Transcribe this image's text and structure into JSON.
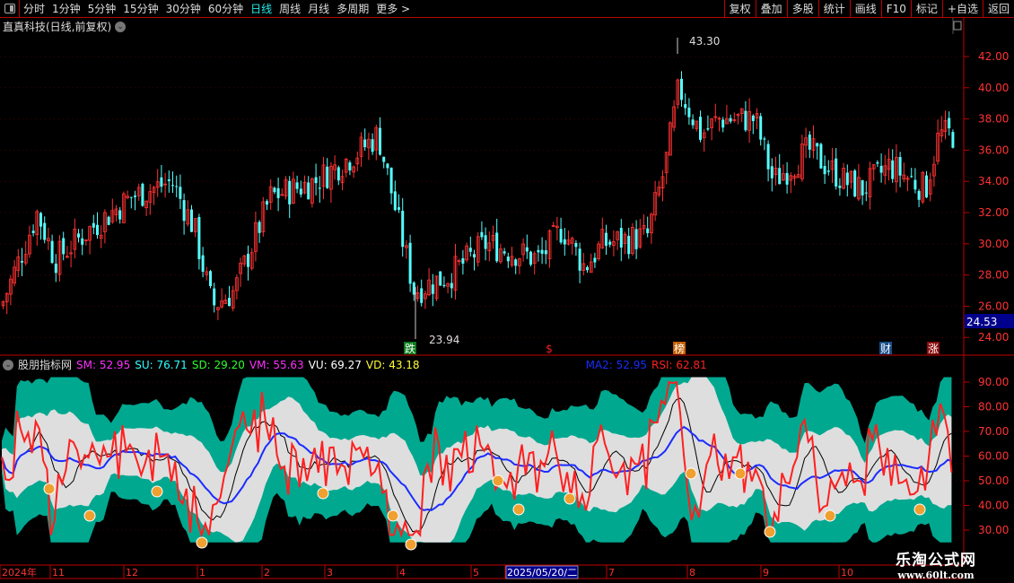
{
  "toolbar": {
    "periods": [
      "分时",
      "1分钟",
      "5分钟",
      "15分钟",
      "30分钟",
      "60分钟",
      "日线",
      "周线",
      "月线",
      "多周期",
      "更多 >"
    ],
    "active": "日线",
    "right_buttons": [
      "复权",
      "叠加",
      "多股",
      "统计",
      "画线",
      "F10",
      "标记",
      "+自选",
      "返回"
    ]
  },
  "stock": {
    "title": "直真科技(日线,前复权)"
  },
  "main_chart": {
    "y_ticks": [
      "42.00",
      "40.00",
      "38.00",
      "36.00",
      "34.00",
      "32.00",
      "30.00",
      "28.00",
      "26.00",
      "24.00"
    ],
    "high_label": "43.30",
    "low_label": "23.94",
    "current_price": "24.53",
    "markers": [
      {
        "text": "跌",
        "color": "#0a7a1a"
      },
      {
        "text": "$",
        "color": "#e22"
      },
      {
        "text": "榜",
        "color": "#c56000"
      },
      {
        "text": "财",
        "color": "#1a4f8a"
      },
      {
        "text": "涨",
        "color": "#8a0a0a"
      }
    ],
    "colors": {
      "up": "#ff3232",
      "down": "#54ffff"
    }
  },
  "indicator": {
    "name": "股朋指标网",
    "values": [
      {
        "label": "SM: 52.95",
        "color": "#ff30ff"
      },
      {
        "label": "SU: 76.71",
        "color": "#30ffff"
      },
      {
        "label": "SD: 29.20",
        "color": "#30ff30"
      },
      {
        "label": "VM: 55.63",
        "color": "#ff30ff"
      },
      {
        "label": "VU: 69.27",
        "color": "#ffffff"
      },
      {
        "label": "VD: 43.18",
        "color": "#ffff30"
      },
      {
        "label": "MA2: 52.95",
        "color": "#1a2cff"
      },
      {
        "label": "RSI: 62.81",
        "color": "#ff2020"
      }
    ],
    "y_ticks": [
      "90.00",
      "80.00",
      "70.00",
      "60.00",
      "50.00",
      "40.00",
      "30.00"
    ],
    "colors": {
      "outer_band": "#00a890",
      "inner_band": "#dedede",
      "rsi": "#ff2020",
      "ma": "#1a2cff"
    }
  },
  "date_axis": {
    "labels": [
      "2024年",
      "11",
      "12",
      "1",
      "2",
      "3",
      "4",
      "5",
      "2025/05/20/二",
      "7",
      "8",
      "9",
      "10"
    ]
  },
  "watermark": {
    "title": "乐淘公式网",
    "url": "www.60lt.com"
  }
}
